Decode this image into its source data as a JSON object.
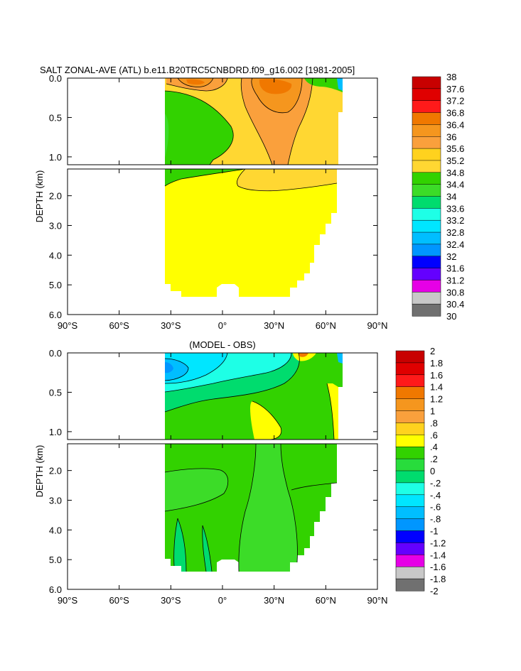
{
  "chart_data": [
    {
      "type": "heatmap",
      "title": "SALT ZONAL-AVE (ATL) b.e11.B20TRC5CNBDRD.f09_g16.002 [1981-2005]",
      "ylabel": "DEPTH (km)",
      "x_ticks": [
        "90°S",
        "60°S",
        "30°S",
        "0°",
        "30°N",
        "60°N",
        "90°N"
      ],
      "y_ticks_upper": [
        "0.0",
        "0.5",
        "1.0"
      ],
      "y_ticks_lower": [
        "2.0",
        "3.0",
        "4.0",
        "5.0",
        "6.0"
      ],
      "y_ticks_upper_values": [
        0,
        0.5,
        1.0
      ],
      "y_ticks_lower_values": [
        2,
        3,
        4,
        5,
        6
      ],
      "xlim": [
        -90,
        90
      ],
      "ylim_upper": [
        0,
        1.1
      ],
      "ylim_lower": [
        1.1,
        6.0
      ],
      "colorbar": {
        "labels": [
          "38",
          "37.6",
          "37.2",
          "36.8",
          "36.4",
          "36",
          "35.6",
          "35.2",
          "34.8",
          "34.4",
          "34",
          "33.6",
          "33.2",
          "32.8",
          "32.4",
          "32",
          "31.6",
          "31.2",
          "30.8",
          "30.4",
          "30"
        ],
        "colors": [
          "#c80000",
          "#e00000",
          "#ff1a1a",
          "#f07800",
          "#f5961e",
          "#faa03c",
          "#ffd21e",
          "#ffd732",
          "#32d200",
          "#3cdc28",
          "#00dc6e",
          "#1effe6",
          "#00e6ff",
          "#00beff",
          "#0096ff",
          "#0000ff",
          "#6400ff",
          "#e600e6",
          "#c8c8c8",
          "#707070"
        ]
      },
      "region": {
        "lat_min": -34,
        "lat_max": 66,
        "depth_max": 5.4
      }
    },
    {
      "type": "heatmap",
      "title": "(MODEL - OBS)",
      "ylabel": "DEPTH (km)",
      "x_ticks": [
        "90°S",
        "60°S",
        "30°S",
        "0°",
        "30°N",
        "60°N",
        "90°N"
      ],
      "y_ticks_upper": [
        "0.0",
        "0.5",
        "1.0"
      ],
      "y_ticks_lower": [
        "2.0",
        "3.0",
        "4.0",
        "5.0",
        "6.0"
      ],
      "y_ticks_upper_values": [
        0,
        0.5,
        1.0
      ],
      "y_ticks_lower_values": [
        2,
        3,
        4,
        5,
        6
      ],
      "xlim": [
        -90,
        90
      ],
      "ylim_upper": [
        0,
        1.1
      ],
      "ylim_lower": [
        1.1,
        6.0
      ],
      "colorbar": {
        "labels": [
          "2",
          "1.8",
          "1.6",
          "1.4",
          "1.2",
          "1",
          ".8",
          ".6",
          ".4",
          ".2",
          "0",
          "-.2",
          "-.4",
          "-.6",
          "-.8",
          "-1",
          "-1.2",
          "-1.4",
          "-1.6",
          "-1.8",
          "-2"
        ],
        "colors": [
          "#c80000",
          "#e00000",
          "#ff1a1a",
          "#f07800",
          "#f5961e",
          "#faa03c",
          "#ffd21e",
          "#ffff00",
          "#32d200",
          "#28dc3c",
          "#00dc6e",
          "#1effe6",
          "#00e6ff",
          "#00beff",
          "#0096ff",
          "#0000ff",
          "#6400ff",
          "#e600e6",
          "#c8c8c8",
          "#707070"
        ]
      },
      "region": {
        "lat_min": -34,
        "lat_max": 66,
        "depth_max": 5.4
      }
    }
  ]
}
